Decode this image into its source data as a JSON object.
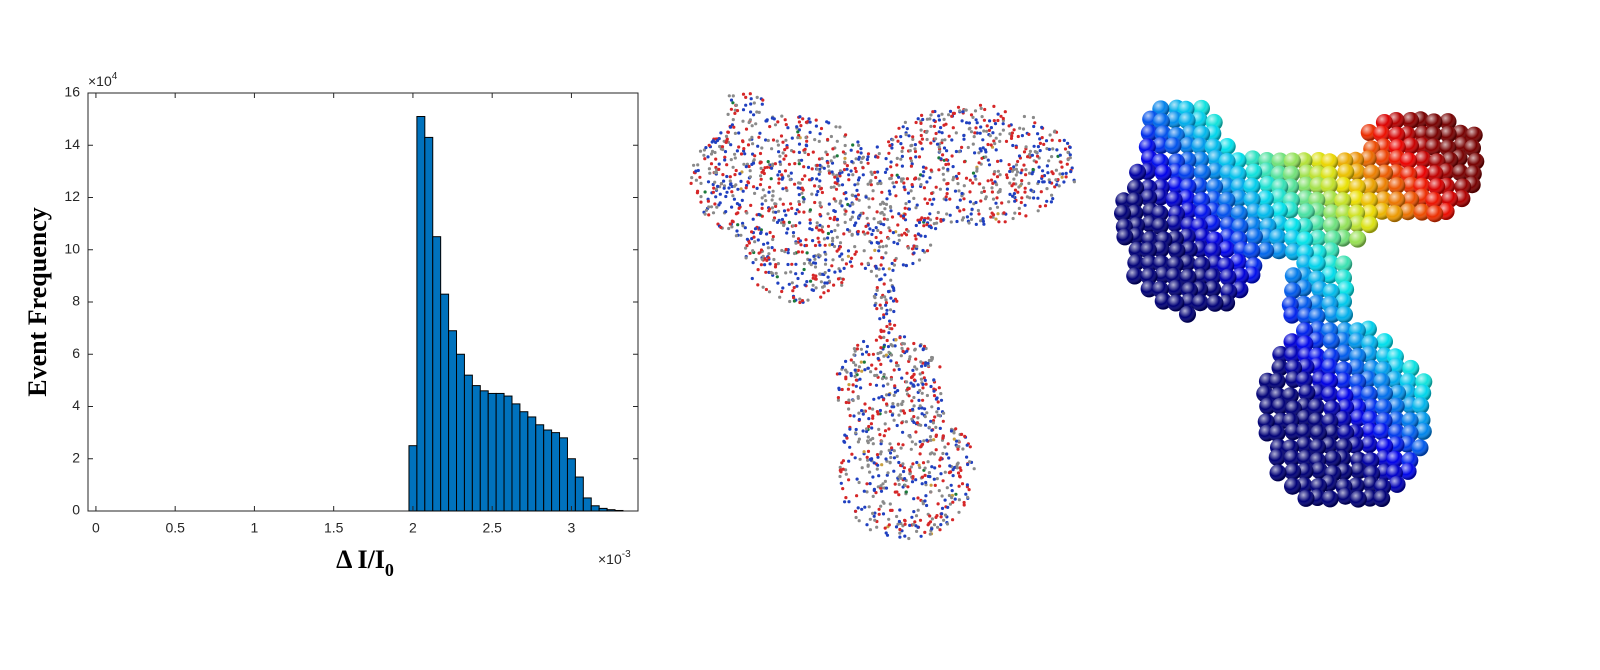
{
  "chart_data": {
    "type": "histogram",
    "ylabel": "Event Frequency",
    "xlabel": "Δ I/I",
    "xlabel_subscript": "0",
    "x_multiplier_base": "×10",
    "x_multiplier_exp": "-3",
    "y_multiplier_base": "×10",
    "y_multiplier_exp": "4",
    "bins": [
      1.975,
      2.025,
      2.075,
      2.125,
      2.175,
      2.225,
      2.275,
      2.325,
      2.375,
      2.425,
      2.475,
      2.525,
      2.575,
      2.625,
      2.675,
      2.725,
      2.775,
      2.825,
      2.875,
      2.925,
      2.975,
      3.025,
      3.075,
      3.125,
      3.175,
      3.225,
      3.275,
      3.325
    ],
    "values": [
      2.5,
      15.1,
      14.3,
      10.5,
      8.3,
      6.9,
      6.0,
      5.2,
      4.8,
      4.6,
      4.5,
      4.5,
      4.4,
      4.1,
      3.8,
      3.6,
      3.3,
      3.1,
      3.0,
      2.8,
      2.0,
      1.3,
      0.5,
      0.2,
      0.1,
      0.05,
      0.02
    ],
    "color": "#0072bd",
    "xlim": [
      -0.05,
      3.42
    ],
    "ylim": [
      0,
      16
    ],
    "xticks": [
      0,
      0.5,
      1,
      1.5,
      2,
      2.5,
      3
    ],
    "yticks": [
      0,
      2,
      4,
      6,
      8,
      10,
      12,
      14,
      16
    ]
  }
}
